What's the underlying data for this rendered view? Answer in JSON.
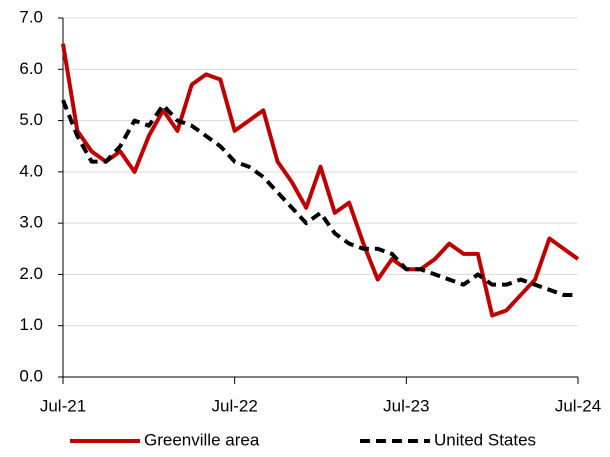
{
  "chart_data": {
    "type": "line",
    "categories": [
      "Jul-21",
      null,
      null,
      null,
      null,
      null,
      null,
      null,
      null,
      null,
      null,
      null,
      "Jul-22",
      null,
      null,
      null,
      null,
      null,
      null,
      null,
      null,
      null,
      null,
      null,
      "Jul-23",
      null,
      null,
      null,
      null,
      null,
      null,
      null,
      null,
      null,
      null,
      null,
      "Jul-24"
    ],
    "series": [
      {
        "name": "Greenville area",
        "color": "#c00000",
        "dash": false,
        "values": [
          6.5,
          4.8,
          4.4,
          4.2,
          4.4,
          4.0,
          4.7,
          5.2,
          4.8,
          5.7,
          5.9,
          5.8,
          4.8,
          5.0,
          5.2,
          4.2,
          3.8,
          3.3,
          4.1,
          3.2,
          3.4,
          2.6,
          1.9,
          2.3,
          2.1,
          2.1,
          2.3,
          2.6,
          2.4,
          2.4,
          1.2,
          1.3,
          1.6,
          1.9,
          2.7,
          2.5,
          2.3
        ]
      },
      {
        "name": "United States",
        "color": "#000000",
        "dash": true,
        "values": [
          5.4,
          4.7,
          4.2,
          4.2,
          4.5,
          5.0,
          4.9,
          5.3,
          5.0,
          4.9,
          4.7,
          4.5,
          4.2,
          4.1,
          3.9,
          3.6,
          3.3,
          3.0,
          3.2,
          2.8,
          2.6,
          2.5,
          2.5,
          2.4,
          2.1,
          2.1,
          2.0,
          1.9,
          1.8,
          2.0,
          1.8,
          1.8,
          1.9,
          1.8,
          1.7,
          1.6,
          1.6
        ]
      }
    ],
    "ylim": [
      0,
      7
    ],
    "yticks": [
      {
        "value": 0,
        "label": "0.0"
      },
      {
        "value": 1,
        "label": "1.0"
      },
      {
        "value": 2,
        "label": "2.0"
      },
      {
        "value": 3,
        "label": "3.0"
      },
      {
        "value": 4,
        "label": "4.0"
      },
      {
        "value": 5,
        "label": "5.0"
      },
      {
        "value": 6,
        "label": "6.0"
      },
      {
        "value": 7,
        "label": "7.0"
      }
    ],
    "grid": true,
    "legend": "bottom"
  }
}
